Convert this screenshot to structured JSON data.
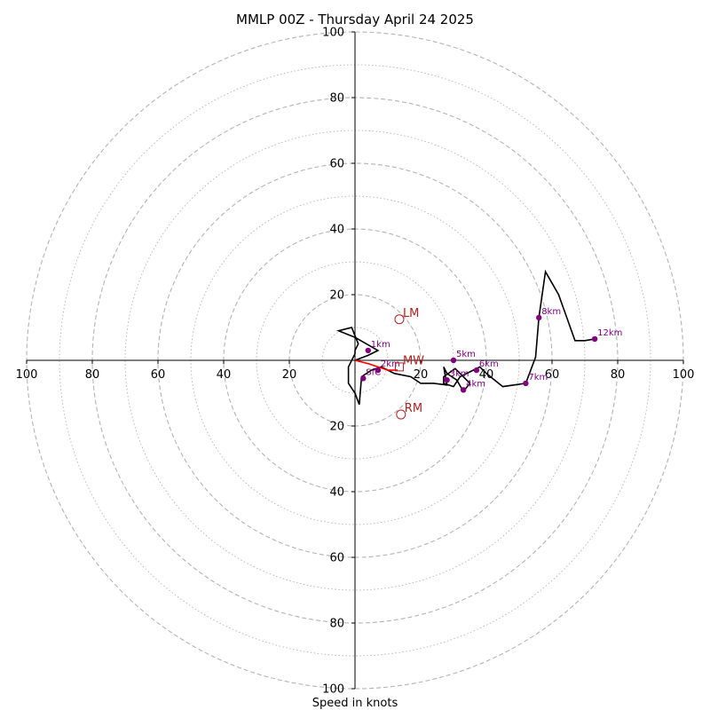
{
  "chart_data": {
    "type": "hodograph",
    "title": "MMLP 00Z - Thursday April 24 2025",
    "xlabel": "Speed in knots",
    "ylabel": "",
    "xlim": [
      -100,
      100
    ],
    "ylim": [
      -100,
      100
    ],
    "grid": true,
    "rings": [
      10,
      20,
      30,
      40,
      50,
      60,
      70,
      80,
      90,
      100
    ],
    "major_rings": [
      20,
      40,
      60,
      80,
      100
    ],
    "x_tick_labels": [
      "100",
      "80",
      "60",
      "40",
      "20",
      "20",
      "40",
      "60",
      "80",
      "100"
    ],
    "y_tick_labels": [
      "100",
      "80",
      "60",
      "40",
      "20",
      "20",
      "40",
      "60",
      "80",
      "100"
    ],
    "colors": {
      "grid": "#b3b3b3",
      "trace": "#000000",
      "lowlevel": "#ff0000",
      "points": "#800080",
      "motion": "#b22222"
    },
    "trace": {
      "u": [
        0,
        4,
        7,
        0,
        -5,
        -1,
        1,
        0,
        0,
        -2,
        -2,
        0,
        1.3,
        2,
        5,
        8,
        12,
        17,
        20,
        24,
        28,
        27,
        28,
        31,
        33,
        35,
        30.5,
        27,
        27,
        30,
        32,
        36,
        38,
        40,
        45,
        52,
        55,
        56,
        58,
        62,
        67,
        70,
        73
      ],
      "v": [
        0,
        1.5,
        3,
        7,
        9,
        10,
        5,
        3,
        2,
        -2,
        -7,
        -10,
        -13.5,
        -5,
        -3,
        -2,
        -4,
        -5,
        -7,
        -7,
        -7.5,
        -2,
        -4,
        -6,
        -9.5,
        -7,
        -2.5,
        -5,
        -7,
        -8,
        -5,
        -3,
        -2,
        -4,
        -8,
        -7,
        1,
        13,
        27,
        20,
        6,
        6,
        6.5
      ]
    },
    "lowlevel_trace": {
      "u": [
        0,
        4,
        7,
        10,
        13
      ],
      "v": [
        0,
        -1,
        -2,
        -3,
        -3
      ]
    },
    "height_points": [
      {
        "label": "1km",
        "u": 4,
        "v": 3
      },
      {
        "label": "2km",
        "u": 7,
        "v": -3
      },
      {
        "label": "3km",
        "u": 28,
        "v": -6
      },
      {
        "label": "4km",
        "u": 33,
        "v": -9
      },
      {
        "label": "5km",
        "u": 30,
        "v": 0
      },
      {
        "label": "6km",
        "u": 37,
        "v": -3
      },
      {
        "label": "7km",
        "u": 52,
        "v": -7
      },
      {
        "label": "8km",
        "u": 56,
        "v": 13
      },
      {
        "label": "12km",
        "u": 73,
        "v": 6.5
      },
      {
        "label": "SfC",
        "u": 2.5,
        "v": -5.5
      }
    ],
    "storm_motion": [
      {
        "label": "LM",
        "u": 13.5,
        "v": 12.5,
        "marker": "circle"
      },
      {
        "label": "MW",
        "u": 13.5,
        "v": -2,
        "marker": "square"
      },
      {
        "label": "RM",
        "u": 14,
        "v": -16.5,
        "marker": "circle"
      }
    ]
  }
}
